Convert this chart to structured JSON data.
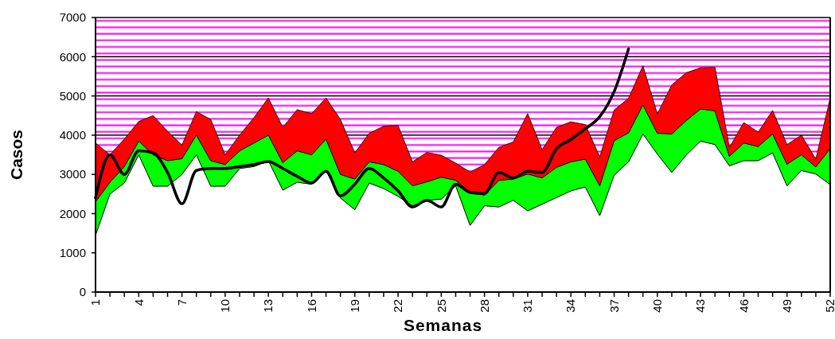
{
  "chart_data": {
    "type": "area",
    "stacked": true,
    "xlabel": "Semanas",
    "ylabel": "Casos",
    "ylim": [
      0,
      7000
    ],
    "yticks": [
      0,
      1000,
      2000,
      3000,
      4000,
      5000,
      6000,
      7000
    ],
    "grid": "y",
    "x": [
      1,
      2,
      3,
      4,
      5,
      6,
      7,
      8,
      9,
      10,
      11,
      12,
      13,
      14,
      15,
      16,
      17,
      18,
      19,
      20,
      21,
      22,
      23,
      24,
      25,
      26,
      27,
      28,
      29,
      30,
      31,
      32,
      33,
      34,
      35,
      36,
      37,
      38,
      39,
      40,
      41,
      42,
      43,
      44,
      45,
      46,
      47,
      48,
      49,
      50,
      51,
      52
    ],
    "xlim": [
      1,
      52
    ],
    "xticks": [
      1,
      {
        "value": 2,
        "label": null
      },
      {
        "value": 3,
        "label": null
      },
      4,
      {
        "value": 5,
        "label": null
      },
      {
        "value": 6,
        "label": null
      },
      7,
      {
        "value": 8,
        "label": null
      },
      {
        "value": 9,
        "label": null
      },
      10,
      {
        "value": 11,
        "label": null
      },
      {
        "value": 12,
        "label": null
      },
      13,
      {
        "value": 14,
        "label": null
      },
      {
        "value": 15,
        "label": null
      },
      16,
      {
        "value": 17,
        "label": null
      },
      {
        "value": 18,
        "label": null
      },
      19,
      {
        "value": 20,
        "label": null
      },
      {
        "value": 21,
        "label": null
      },
      22,
      {
        "value": 23,
        "label": null
      },
      {
        "value": 24,
        "label": null
      },
      25,
      {
        "value": 26,
        "label": null
      },
      {
        "value": 27,
        "label": null
      },
      28,
      {
        "value": 29,
        "label": null
      },
      {
        "value": 30,
        "label": null
      },
      31,
      {
        "value": 32,
        "label": null
      },
      {
        "value": 33,
        "label": null
      },
      34,
      {
        "value": 35,
        "label": null
      },
      {
        "value": 36,
        "label": null
      },
      37,
      {
        "value": 38,
        "label": null
      },
      {
        "value": 39,
        "label": null
      },
      40,
      {
        "value": 41,
        "label": null
      },
      {
        "value": 42,
        "label": null
      },
      43,
      {
        "value": 44,
        "label": null
      },
      {
        "value": 45,
        "label": null
      },
      46,
      {
        "value": 47,
        "label": null
      },
      {
        "value": 48,
        "label": null
      },
      49,
      {
        "value": 50,
        "label": null
      },
      {
        "value": 51,
        "label": null
      },
      52
    ],
    "series": [
      {
        "color": "#ffffff",
        "values": [
          1450,
          2500,
          2780,
          3500,
          2700,
          2700,
          3000,
          3500,
          2700,
          2700,
          3150,
          3200,
          3350,
          2600,
          2800,
          2750,
          3100,
          2400,
          2100,
          2780,
          2640,
          2440,
          2200,
          2340,
          2370,
          2710,
          1700,
          2200,
          2170,
          2340,
          2070,
          2240,
          2410,
          2580,
          2680,
          1950,
          2980,
          3320,
          4030,
          3520,
          3050,
          3490,
          3850,
          3760,
          3220,
          3350,
          3350,
          3550,
          2710,
          3100,
          3010,
          2740
        ]
      },
      {
        "color": "#00ff00",
        "values": [
          850,
          300,
          420,
          350,
          800,
          650,
          400,
          500,
          650,
          550,
          450,
          600,
          650,
          700,
          800,
          750,
          800,
          600,
          780,
          540,
          610,
          640,
          510,
          470,
          560,
          140,
          840,
          270,
          680,
          540,
          940,
          670,
          770,
          740,
          710,
          760,
          880,
          740,
          740,
          530,
          980,
          880,
          820,
          860,
          240,
          450,
          360,
          480,
          550,
          400,
          180,
          920
        ]
      },
      {
        "color": "#ff0000",
        "values": [
          1500,
          700,
          700,
          500,
          1000,
          750,
          350,
          600,
          1050,
          250,
          400,
          650,
          950,
          900,
          1050,
          1050,
          1050,
          1400,
          670,
          730,
          980,
          1170,
          610,
          750,
          560,
          440,
          520,
          780,
          840,
          950,
          1540,
          720,
          1020,
          1020,
          880,
          740,
          780,
          880,
          1000,
          490,
          1250,
          1220,
          1050,
          1110,
          230,
          520,
          370,
          600,
          500,
          500,
          200,
          1290
        ]
      },
      {
        "type": "line",
        "color": "#000000",
        "x": [
          1,
          2,
          3,
          4,
          5,
          6,
          7,
          8,
          9,
          10,
          11,
          12,
          13,
          14,
          15,
          16,
          17,
          18,
          19,
          20,
          21,
          22,
          23,
          24,
          25,
          26,
          27,
          28,
          29,
          30,
          31,
          32,
          33,
          34,
          35,
          36,
          37,
          38
        ],
        "values": [
          2400,
          3500,
          3000,
          3600,
          3550,
          3050,
          2250,
          3100,
          3150,
          3150,
          3200,
          3250,
          3330,
          3150,
          2950,
          2780,
          3080,
          2450,
          2750,
          3150,
          2910,
          2580,
          2170,
          2340,
          2170,
          2750,
          2540,
          2510,
          3050,
          2910,
          3080,
          3050,
          3650,
          3890,
          4160,
          4470,
          5110,
          6200
        ]
      }
    ]
  }
}
